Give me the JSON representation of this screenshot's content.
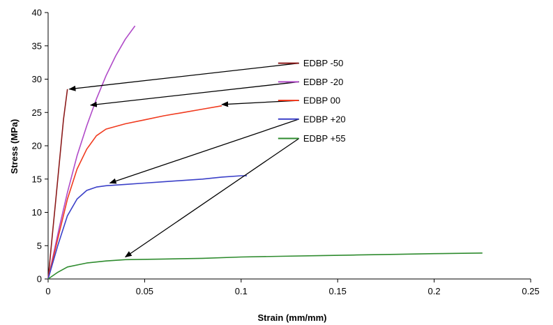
{
  "chart_data": {
    "type": "line",
    "title": "",
    "xlabel": "Strain (mm/mm)",
    "ylabel": "Stress (MPa)",
    "xlim": [
      0,
      0.25
    ],
    "ylim": [
      0,
      40
    ],
    "xticks": [
      0,
      0.05,
      0.1,
      0.15,
      0.2,
      0.25
    ],
    "xtick_labels": [
      "0",
      "0.05",
      "0.1",
      "0.15",
      "0.2",
      "0.25"
    ],
    "yticks": [
      0,
      5,
      10,
      15,
      20,
      25,
      30,
      35,
      40
    ],
    "ytick_labels": [
      "0",
      "5",
      "10",
      "15",
      "20",
      "25",
      "30",
      "35",
      "40"
    ],
    "grid": false,
    "legend_placement": "callout labels at right of plot, arrows pointing to curves",
    "series": [
      {
        "name": "EDBP -50",
        "color": "#8b1a1a",
        "points": [
          [
            0,
            0
          ],
          [
            0.002,
            6
          ],
          [
            0.004,
            12
          ],
          [
            0.006,
            18
          ],
          [
            0.008,
            24
          ],
          [
            0.01,
            28.5
          ]
        ]
      },
      {
        "name": "EDBP -20",
        "color": "#b04ac8",
        "points": [
          [
            0,
            0
          ],
          [
            0.003,
            4
          ],
          [
            0.006,
            8
          ],
          [
            0.01,
            13
          ],
          [
            0.015,
            18.5
          ],
          [
            0.02,
            23
          ],
          [
            0.025,
            27
          ],
          [
            0.03,
            30.5
          ],
          [
            0.035,
            33.5
          ],
          [
            0.04,
            36
          ],
          [
            0.045,
            38
          ]
        ]
      },
      {
        "name": "EDBP 00",
        "color": "#f03a1e",
        "points": [
          [
            0,
            0
          ],
          [
            0.005,
            6
          ],
          [
            0.01,
            12
          ],
          [
            0.015,
            16.5
          ],
          [
            0.02,
            19.5
          ],
          [
            0.025,
            21.5
          ],
          [
            0.03,
            22.5
          ],
          [
            0.04,
            23.3
          ],
          [
            0.05,
            23.9
          ],
          [
            0.06,
            24.5
          ],
          [
            0.07,
            25
          ],
          [
            0.08,
            25.5
          ],
          [
            0.09,
            26
          ]
        ]
      },
      {
        "name": "EDBP +20",
        "color": "#3b40c8",
        "points": [
          [
            0,
            0
          ],
          [
            0.005,
            5
          ],
          [
            0.01,
            9.5
          ],
          [
            0.015,
            12
          ],
          [
            0.02,
            13.3
          ],
          [
            0.025,
            13.8
          ],
          [
            0.03,
            14
          ],
          [
            0.04,
            14.2
          ],
          [
            0.05,
            14.4
          ],
          [
            0.06,
            14.6
          ],
          [
            0.07,
            14.8
          ],
          [
            0.08,
            15
          ],
          [
            0.09,
            15.3
          ],
          [
            0.1,
            15.5
          ],
          [
            0.103,
            15.5
          ]
        ]
      },
      {
        "name": "EDBP +55",
        "color": "#2e8b2e",
        "points": [
          [
            0,
            0
          ],
          [
            0.005,
            1
          ],
          [
            0.01,
            1.8
          ],
          [
            0.02,
            2.4
          ],
          [
            0.03,
            2.7
          ],
          [
            0.04,
            2.9
          ],
          [
            0.06,
            3
          ],
          [
            0.08,
            3.1
          ],
          [
            0.1,
            3.3
          ],
          [
            0.12,
            3.4
          ],
          [
            0.14,
            3.5
          ],
          [
            0.16,
            3.6
          ],
          [
            0.18,
            3.7
          ],
          [
            0.2,
            3.8
          ],
          [
            0.225,
            3.9
          ]
        ]
      }
    ],
    "annotations": [
      {
        "label": "EDBP -50",
        "line_start": [
          0.13,
          32.4
        ],
        "arrow_tip": [
          0.011,
          28.5
        ]
      },
      {
        "label": "EDBP -20",
        "line_start": [
          0.13,
          29.6
        ],
        "arrow_tip": [
          0.022,
          26.1
        ]
      },
      {
        "label": "EDBP 00",
        "line_start": [
          0.13,
          26.8
        ],
        "arrow_tip": [
          0.09,
          26.2
        ]
      },
      {
        "label": "EDBP +20",
        "line_start": [
          0.13,
          24.0
        ],
        "arrow_tip": [
          0.032,
          14.4
        ]
      },
      {
        "label": "EDBP +55",
        "line_start": [
          0.13,
          21.1
        ],
        "arrow_tip": [
          0.04,
          3.3
        ]
      }
    ]
  }
}
